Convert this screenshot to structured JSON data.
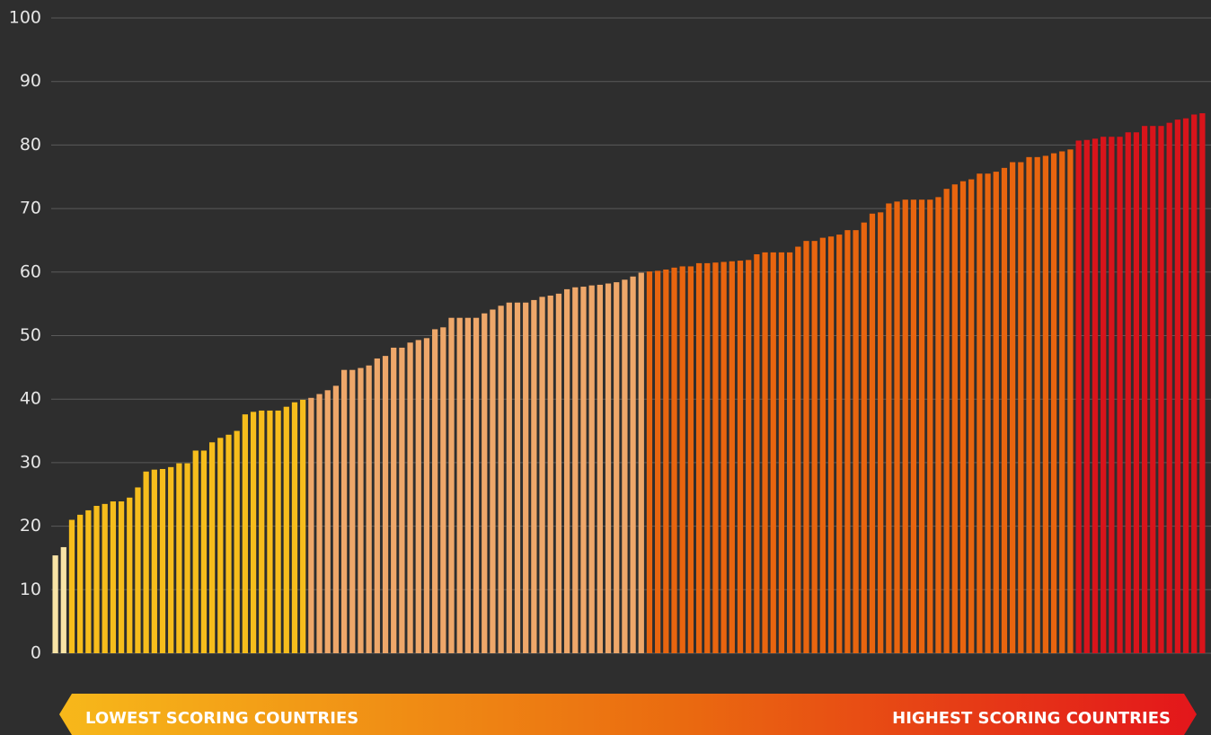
{
  "chart_data": {
    "type": "bar",
    "ylim": [
      0,
      100
    ],
    "yticks": [
      0,
      10,
      20,
      30,
      40,
      50,
      60,
      70,
      80,
      90,
      100
    ],
    "grid": true,
    "series": [
      {
        "color": "#f8e4a6",
        "values": [
          15.4,
          16.7
        ]
      },
      {
        "color": "#f6bd1c",
        "values": [
          21.0,
          21.8,
          22.5,
          23.2,
          23.5,
          23.9,
          23.9,
          24.5,
          26.1,
          28.6,
          28.9,
          29.0,
          29.3,
          29.9,
          29.9,
          31.9,
          31.9,
          33.2,
          33.9,
          34.4,
          35.0,
          37.6,
          38.0,
          38.2,
          38.2,
          38.2,
          38.8,
          39.5,
          39.9
        ]
      },
      {
        "color": "#eea76a",
        "values": [
          40.2,
          40.8,
          41.4,
          42.1,
          44.6,
          44.6,
          44.9,
          45.3,
          46.4,
          46.8,
          48.1,
          48.1,
          48.9,
          49.3,
          49.6,
          51.0,
          51.3,
          52.8,
          52.8,
          52.8,
          52.8,
          53.5,
          54.1,
          54.7,
          55.2,
          55.2,
          55.2,
          55.6,
          56.1,
          56.3,
          56.6,
          57.3,
          57.6,
          57.7,
          57.9,
          58.0,
          58.2,
          58.4,
          58.8,
          59.3,
          59.9
        ]
      },
      {
        "color": "#e8650f",
        "values": [
          60.1,
          60.2,
          60.4,
          60.7,
          60.9,
          60.9,
          61.4,
          61.4,
          61.5,
          61.6,
          61.7,
          61.8,
          61.9,
          62.8,
          63.1,
          63.1,
          63.1,
          63.1,
          64.0,
          64.9,
          64.9,
          65.4,
          65.6,
          65.9,
          66.6,
          66.6,
          67.8,
          69.2,
          69.4,
          70.8,
          71.1,
          71.4,
          71.4,
          71.4,
          71.4,
          71.8,
          73.1,
          73.8,
          74.3,
          74.6,
          75.5,
          75.5,
          75.8,
          76.4,
          77.3,
          77.3,
          78.1,
          78.1,
          78.3,
          78.7,
          79.0,
          79.3
        ]
      },
      {
        "color": "#d8141b",
        "values": [
          80.7,
          80.8,
          81.0,
          81.3,
          81.3,
          81.3,
          82.0,
          82.0,
          83.0,
          83.0,
          83.0,
          83.5,
          84.0,
          84.2,
          84.8,
          85.0
        ]
      }
    ],
    "annotations": [
      "LOWEST SCORING COUNTRIES",
      "HIGHEST SCORING COUNTRIES"
    ]
  }
}
